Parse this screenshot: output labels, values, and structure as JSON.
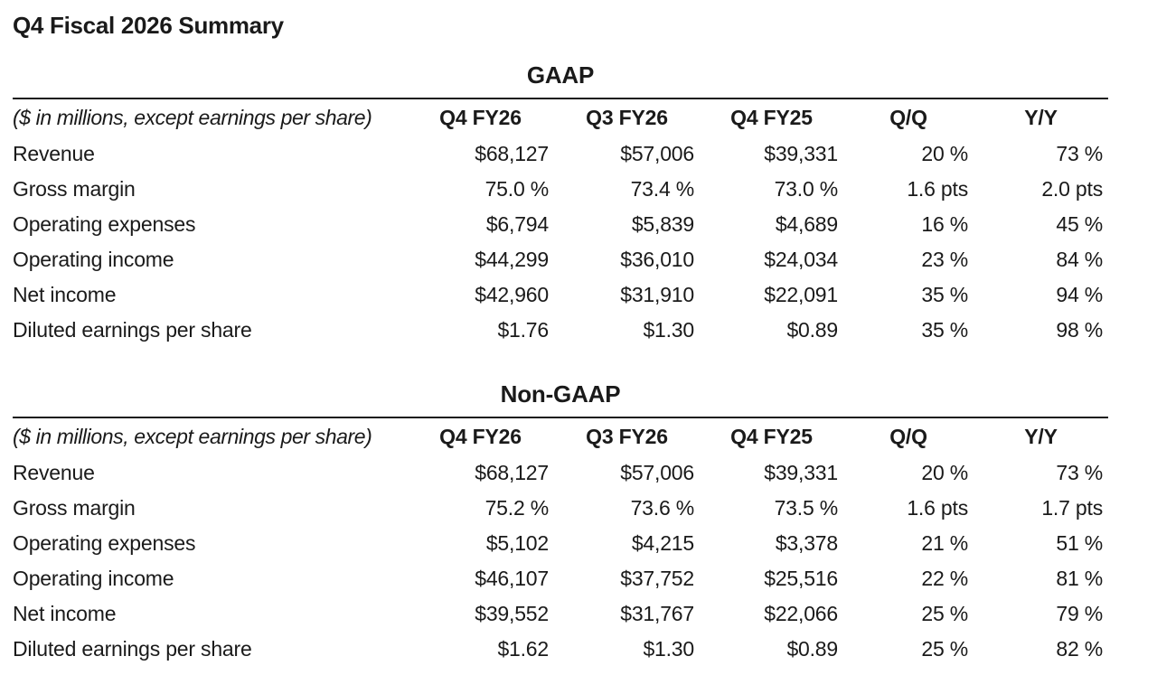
{
  "title": "Q4 Fiscal 2026 Summary",
  "colors": {
    "background": "#ffffff",
    "text": "#1a1a1a",
    "rule": "#1a1a1a"
  },
  "tables": [
    {
      "heading": "GAAP",
      "unit_label": "($ in millions, except earnings per share)",
      "columns": [
        "Q4 FY26",
        "Q3 FY26",
        "Q4 FY25",
        "Q/Q",
        "Y/Y"
      ],
      "rows": [
        {
          "label": "Revenue",
          "values": [
            "$68,127",
            "$57,006",
            "$39,331",
            "20 %",
            "73 %"
          ]
        },
        {
          "label": "Gross margin",
          "values": [
            "75.0 %",
            "73.4 %",
            "73.0 %",
            "1.6 pts",
            "2.0 pts"
          ]
        },
        {
          "label": "Operating expenses",
          "values": [
            "$6,794",
            "$5,839",
            "$4,689",
            "16 %",
            "45 %"
          ]
        },
        {
          "label": "Operating income",
          "values": [
            "$44,299",
            "$36,010",
            "$24,034",
            "23 %",
            "84 %"
          ]
        },
        {
          "label": "Net income",
          "values": [
            "$42,960",
            "$31,910",
            "$22,091",
            "35 %",
            "94 %"
          ]
        },
        {
          "label": "Diluted earnings per share",
          "values": [
            "$1.76",
            "$1.30",
            "$0.89",
            "35 %",
            "98 %"
          ]
        }
      ]
    },
    {
      "heading": "Non-GAAP",
      "unit_label": "($ in millions, except earnings per share)",
      "columns": [
        "Q4 FY26",
        "Q3 FY26",
        "Q4 FY25",
        "Q/Q",
        "Y/Y"
      ],
      "rows": [
        {
          "label": "Revenue",
          "values": [
            "$68,127",
            "$57,006",
            "$39,331",
            "20 %",
            "73 %"
          ]
        },
        {
          "label": "Gross margin",
          "values": [
            "75.2 %",
            "73.6 %",
            "73.5 %",
            "1.6 pts",
            "1.7 pts"
          ]
        },
        {
          "label": "Operating expenses",
          "values": [
            "$5,102",
            "$4,215",
            "$3,378",
            "21 %",
            "51 %"
          ]
        },
        {
          "label": "Operating income",
          "values": [
            "$46,107",
            "$37,752",
            "$25,516",
            "22 %",
            "81 %"
          ]
        },
        {
          "label": "Net income",
          "values": [
            "$39,552",
            "$31,767",
            "$22,066",
            "25 %",
            "79 %"
          ]
        },
        {
          "label": "Diluted earnings per share",
          "values": [
            "$1.62",
            "$1.30",
            "$0.89",
            "25 %",
            "82 %"
          ]
        }
      ]
    }
  ]
}
